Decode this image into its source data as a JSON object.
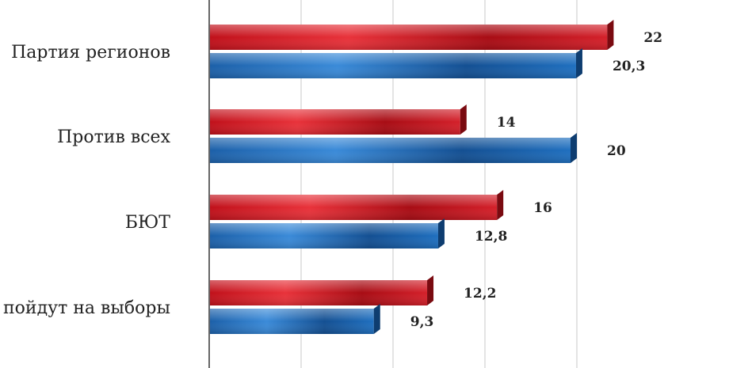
{
  "chart_data": {
    "type": "bar",
    "orientation": "horizontal",
    "categories": [
      "Партия регионов",
      "Против всех",
      "БЮТ",
      "пойдут на выборы"
    ],
    "series": [
      {
        "values": [
          22,
          14,
          16,
          12.2
        ],
        "value_labels": [
          "22",
          "14",
          "16",
          "12,2"
        ],
        "color": "#d4202a"
      },
      {
        "values": [
          20.3,
          20,
          12.8,
          9.3
        ],
        "value_labels": [
          "20,3",
          "20",
          "12,8",
          "9,3"
        ],
        "color": "#1f6fbf"
      }
    ],
    "xlim": [
      0,
      24
    ],
    "grid": true,
    "legend": "none"
  }
}
